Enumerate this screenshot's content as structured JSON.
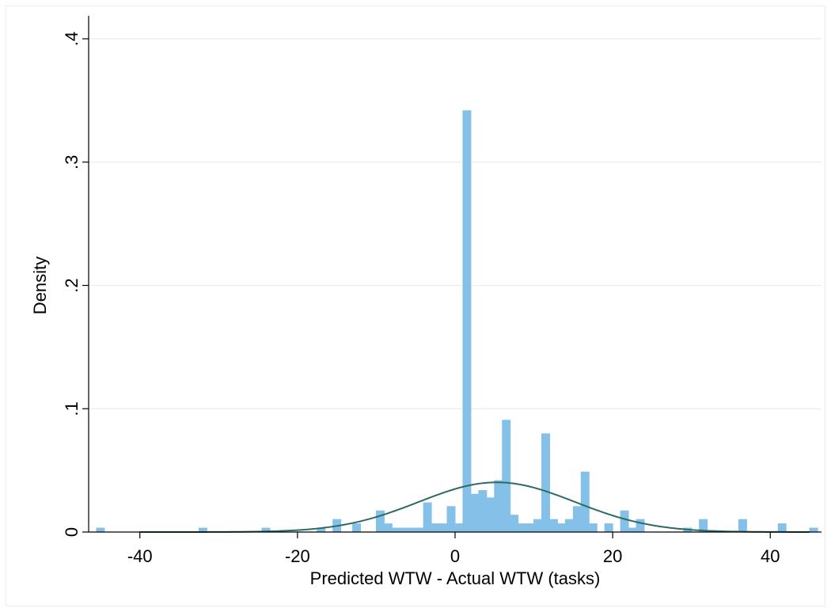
{
  "chart_data": {
    "type": "bar",
    "title": "",
    "xlabel": "Predicted WTW - Actual WTW (tasks)",
    "ylabel": "Density",
    "xlim": [
      -46.5,
      46.5
    ],
    "ylim": [
      0,
      0.4
    ],
    "x_ticks": [
      {
        "value": -40,
        "label": "-40"
      },
      {
        "value": -20,
        "label": "-20"
      },
      {
        "value": 0,
        "label": "0"
      },
      {
        "value": 20,
        "label": "20"
      },
      {
        "value": 40,
        "label": "40"
      }
    ],
    "y_ticks": [
      {
        "value": 0,
        "label": "0"
      },
      {
        "value": 0.1,
        "label": ".1"
      },
      {
        "value": 0.2,
        "label": ".2"
      },
      {
        "value": 0.3,
        "label": ".3"
      },
      {
        "value": 0.4,
        "label": ".4"
      }
    ],
    "grid": "horizontal",
    "bin_width": 1.1,
    "bins": [
      {
        "x": -45,
        "density": 0.0035
      },
      {
        "x": -32,
        "density": 0.0035
      },
      {
        "x": -24,
        "density": 0.0035
      },
      {
        "x": -17,
        "density": 0.0035
      },
      {
        "x": -15,
        "density": 0.0105
      },
      {
        "x": -12.5,
        "density": 0.007
      },
      {
        "x": -9.5,
        "density": 0.0175
      },
      {
        "x": -8.5,
        "density": 0.007
      },
      {
        "x": -7.5,
        "density": 0.0035
      },
      {
        "x": -6.5,
        "density": 0.0035
      },
      {
        "x": -5.5,
        "density": 0.0035
      },
      {
        "x": -4.5,
        "density": 0.0035
      },
      {
        "x": -3.5,
        "density": 0.024
      },
      {
        "x": -2.5,
        "density": 0.007
      },
      {
        "x": -1.5,
        "density": 0.007
      },
      {
        "x": -0.5,
        "density": 0.021
      },
      {
        "x": 0.5,
        "density": 0.007
      },
      {
        "x": 1.5,
        "density": 0.342
      },
      {
        "x": 2.5,
        "density": 0.031
      },
      {
        "x": 3.5,
        "density": 0.034
      },
      {
        "x": 4.5,
        "density": 0.028
      },
      {
        "x": 5.5,
        "density": 0.042
      },
      {
        "x": 6.5,
        "density": 0.091
      },
      {
        "x": 7.5,
        "density": 0.014
      },
      {
        "x": 8.5,
        "density": 0.007
      },
      {
        "x": 9.5,
        "density": 0.007
      },
      {
        "x": 10.5,
        "density": 0.0105
      },
      {
        "x": 11.5,
        "density": 0.08
      },
      {
        "x": 12.5,
        "density": 0.0105
      },
      {
        "x": 13.5,
        "density": 0.007
      },
      {
        "x": 14.5,
        "density": 0.0105
      },
      {
        "x": 15.5,
        "density": 0.021
      },
      {
        "x": 16.5,
        "density": 0.049
      },
      {
        "x": 17.5,
        "density": 0.007
      },
      {
        "x": 19.5,
        "density": 0.007
      },
      {
        "x": 21.5,
        "density": 0.0175
      },
      {
        "x": 22.5,
        "density": 0.0035
      },
      {
        "x": 23.5,
        "density": 0.0105
      },
      {
        "x": 29.5,
        "density": 0.0035
      },
      {
        "x": 31.5,
        "density": 0.0105
      },
      {
        "x": 36.5,
        "density": 0.0105
      },
      {
        "x": 41.5,
        "density": 0.007
      },
      {
        "x": 45.5,
        "density": 0.0035
      }
    ],
    "normal_curve": {
      "mean": 5.3,
      "sd": 9.9
    },
    "colors": {
      "bars": "#85c0e9",
      "curve": "#2d6b62",
      "grid": "#e6eef3",
      "axis": "#000000"
    }
  }
}
